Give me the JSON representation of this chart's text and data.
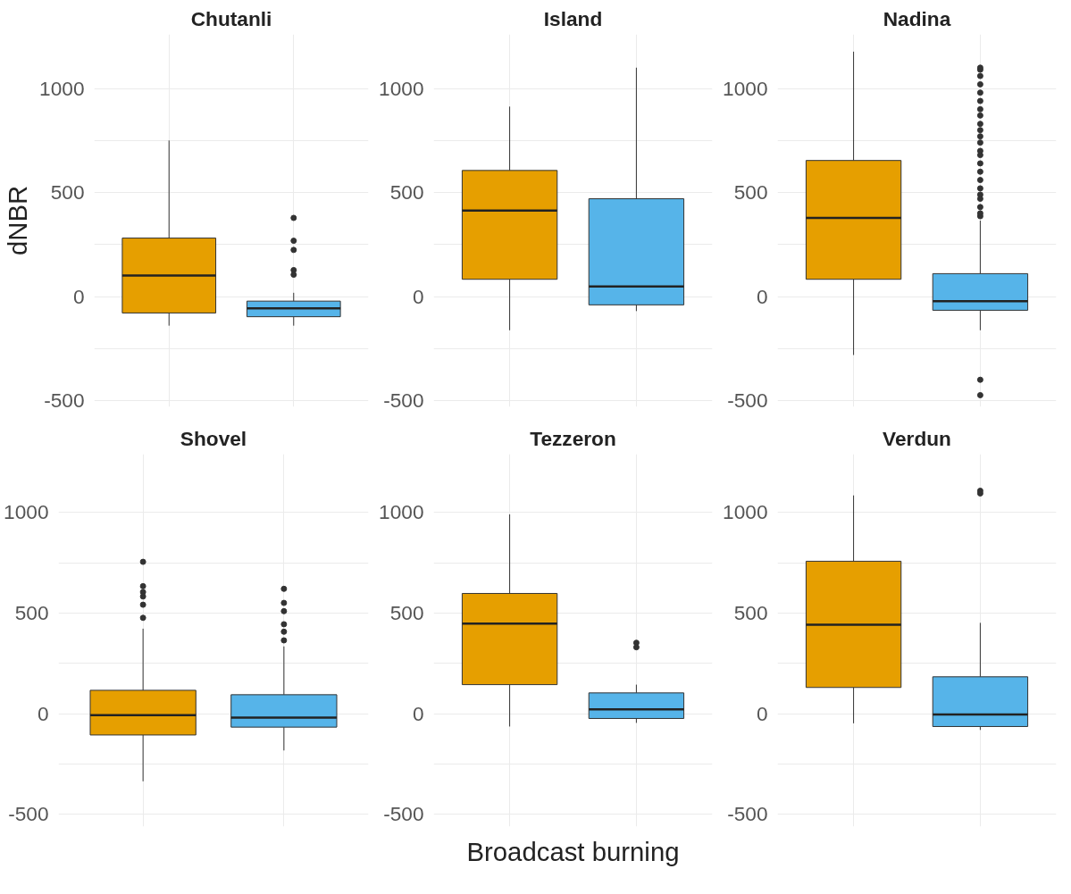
{
  "chart_data": [
    {
      "type": "box",
      "title": "Chutanli",
      "categories": [
        null,
        null
      ],
      "colors": [
        "#e69f00",
        "#56b4e9"
      ],
      "ylim": [
        -530,
        1260
      ],
      "yticks": [
        -500,
        {
          "value": -250,
          "label": null
        },
        0,
        {
          "value": 250,
          "label": null
        },
        500,
        {
          "value": 750,
          "label": null
        },
        1000
      ],
      "grid": true,
      "tick_labels": "y",
      "ylabel": "dNBR",
      "boxes": [
        {
          "low": -140,
          "q1": -79,
          "median": 101,
          "q3": 281,
          "high": 750
        },
        {
          "low": -140,
          "q1": -97,
          "median": -57,
          "q3": -22,
          "high": 18,
          "outliers": [
            378,
            268,
            224,
            127,
            105
          ]
        }
      ]
    },
    {
      "type": "box",
      "title": "Island",
      "categories": [
        null,
        null
      ],
      "colors": [
        "#e69f00",
        "#56b4e9"
      ],
      "ylim": [
        -530,
        1260
      ],
      "yticks": [
        -500,
        {
          "value": -250,
          "label": null
        },
        0,
        {
          "value": 250,
          "label": null
        },
        500,
        {
          "value": 750,
          "label": null
        },
        1000
      ],
      "grid": true,
      "boxes": [
        {
          "low": -162,
          "q1": 83,
          "median": 413,
          "q3": 606,
          "high": 913
        },
        {
          "low": -70,
          "q1": -40,
          "median": 48,
          "q3": 470,
          "high": 1100
        }
      ]
    },
    {
      "type": "box",
      "title": "Nadina",
      "categories": [
        null,
        null
      ],
      "colors": [
        "#e69f00",
        "#56b4e9"
      ],
      "ylim": [
        -530,
        1260
      ],
      "yticks": [
        -500,
        {
          "value": -250,
          "label": null
        },
        0,
        {
          "value": 250,
          "label": null
        },
        500,
        {
          "value": 750,
          "label": null
        },
        1000
      ],
      "grid": true,
      "boxes": [
        {
          "low": -281,
          "q1": 83,
          "median": 378,
          "q3": 654,
          "high": 1177
        },
        {
          "low": -162,
          "q1": -66,
          "median": -22,
          "q3": 110,
          "high": 365,
          "outliers": [
            386,
            400,
            430,
            470,
            490,
            520,
            560,
            600,
            640,
            680,
            700,
            740,
            770,
            800,
            830,
            870,
            900,
            940,
            980,
            1020,
            1060,
            1090,
            1100,
            -400,
            -474
          ]
        }
      ]
    },
    {
      "type": "box",
      "title": "Shovel",
      "categories": [
        null,
        null
      ],
      "colors": [
        "#e69f00",
        "#56b4e9"
      ],
      "ylim": [
        -560,
        1290
      ],
      "yticks": [
        -500,
        {
          "value": -250,
          "label": null
        },
        0,
        {
          "value": 250,
          "label": null
        },
        500,
        {
          "value": 750,
          "label": null
        },
        1000
      ],
      "grid": true,
      "tick_labels": "y",
      "boxes": [
        {
          "low": -335,
          "q1": -105,
          "median": -7,
          "q3": 117,
          "high": 423,
          "outliers": [
            755,
            634,
            605,
            583,
            542,
            477
          ]
        },
        {
          "low": -182,
          "q1": -66,
          "median": -19,
          "q3": 95,
          "high": 335,
          "outliers": [
            621,
            551,
            510,
            445,
            408,
            365
          ]
        }
      ]
    },
    {
      "type": "box",
      "title": "Tezzeron",
      "categories": [
        null,
        null
      ],
      "colors": [
        "#e69f00",
        "#56b4e9"
      ],
      "ylim": [
        -560,
        1290
      ],
      "yticks": [
        -500,
        {
          "value": -250,
          "label": null
        },
        0,
        {
          "value": 250,
          "label": null
        },
        500,
        {
          "value": 750,
          "label": null
        },
        1000
      ],
      "grid": true,
      "xlabel": "Broadcast burning",
      "boxes": [
        {
          "low": -63,
          "q1": 145,
          "median": 448,
          "q3": 598,
          "high": 991
        },
        {
          "low": -45,
          "q1": -23,
          "median": 22,
          "q3": 104,
          "high": 145,
          "outliers": [
            353,
            331
          ]
        }
      ]
    },
    {
      "type": "box",
      "title": "Verdun",
      "categories": [
        null,
        null
      ],
      "colors": [
        "#e69f00",
        "#56b4e9"
      ],
      "ylim": [
        -560,
        1290
      ],
      "yticks": [
        -500,
        {
          "value": -250,
          "label": null
        },
        0,
        {
          "value": 250,
          "label": null
        },
        500,
        {
          "value": 750,
          "label": null
        },
        1000
      ],
      "grid": true,
      "boxes": [
        {
          "low": -47,
          "q1": 131,
          "median": 443,
          "q3": 758,
          "high": 1085
        },
        {
          "low": -80,
          "q1": -63,
          "median": -3,
          "q3": 184,
          "high": 452,
          "outliers": [
            1108,
            1095
          ]
        }
      ]
    }
  ]
}
